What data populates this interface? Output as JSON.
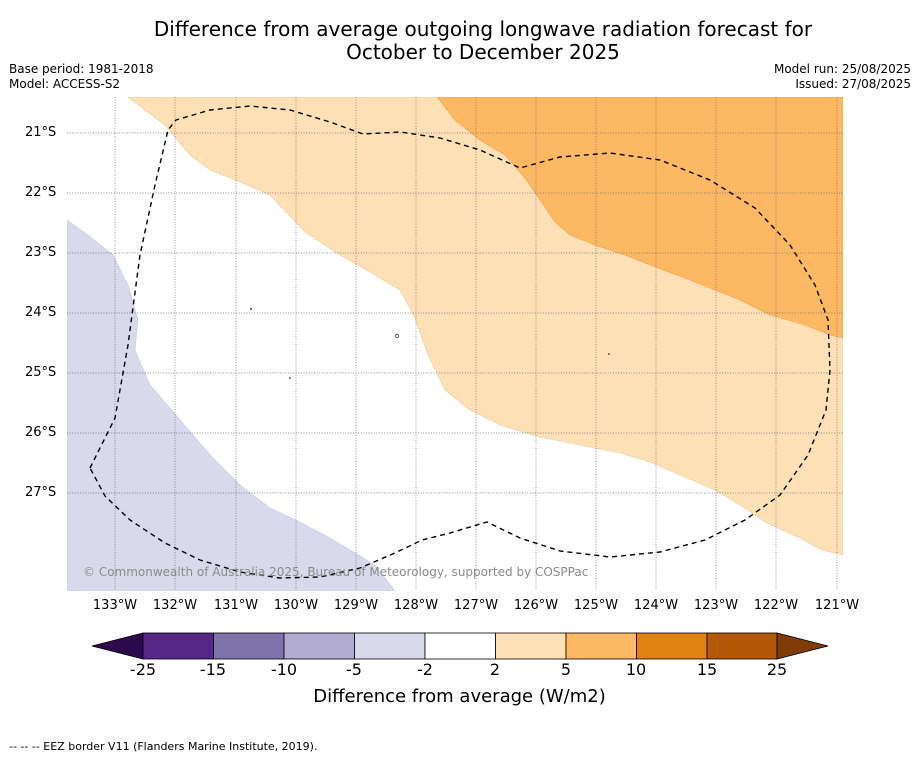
{
  "title_line1": "Difference from average outgoing longwave radiation forecast for",
  "title_line2": "October to December 2025",
  "meta_left": {
    "base_period": "Base period: 1981-2018",
    "model": "Model: ACCESS-S2"
  },
  "meta_right": {
    "model_run": "Model run: 25/08/2025",
    "issued": "Issued: 27/08/2025"
  },
  "credit": "© Commonwealth of Australia 2025, Bureau of Meteorology, supported by COSPPac",
  "latitudes": [
    "21°S",
    "22°S",
    "23°S",
    "24°S",
    "25°S",
    "26°S",
    "27°S"
  ],
  "longitudes": [
    "133°W",
    "132°W",
    "131°W",
    "130°W",
    "129°W",
    "128°W",
    "127°W",
    "126°W",
    "125°W",
    "124°W",
    "123°W",
    "122°W",
    "121°W"
  ],
  "colorbar": {
    "ticks": [
      "-25",
      "-15",
      "-10",
      "-5",
      "-2",
      "2",
      "5",
      "10",
      "15",
      "25"
    ],
    "label": "Difference from average (W/m2)",
    "colors": {
      "below_-25": "#2d0a4e",
      "-25_-15": "#542788",
      "-15_-10": "#8073ac",
      "-10_-5": "#b2abd2",
      "-5_-2": "#d8daeb",
      "-2_2": "#ffffff",
      "2_5": "#fee0b6",
      "5_10": "#fdb863",
      "10_15": "#e08214",
      "15_25": "#b35806",
      "above_25": "#7f3b08"
    }
  },
  "footer": "-- -- -- EEZ border V11 (Flanders Marine Institute, 2019)."
}
